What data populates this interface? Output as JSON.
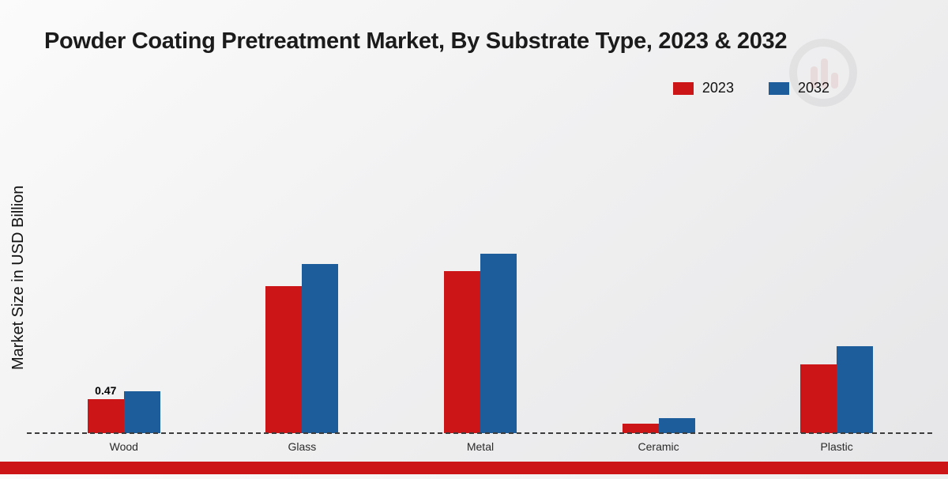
{
  "chart_data": {
    "type": "bar",
    "title": "Powder Coating Pretreatment Market, By Substrate Type, 2023 & 2032",
    "ylabel": "Market Size in USD Billion",
    "xlabel": "",
    "categories": [
      "Wood",
      "Glass",
      "Metal",
      "Ceramic",
      "Plastic"
    ],
    "series": [
      {
        "name": "2023",
        "color": "#cc1517",
        "values": [
          0.47,
          2.03,
          2.24,
          0.13,
          0.95
        ]
      },
      {
        "name": "2032",
        "color": "#1d5d9b",
        "values": [
          0.58,
          2.34,
          2.48,
          0.21,
          1.2
        ]
      }
    ],
    "data_labels": [
      {
        "series": "2023",
        "category": "Wood",
        "text": "0.47"
      }
    ],
    "ylim": [
      0,
      4.5
    ],
    "grid": false,
    "legend_position": "top-right",
    "baseline_style": "dashed"
  },
  "footer": {
    "accent_color": "#cc1517"
  }
}
